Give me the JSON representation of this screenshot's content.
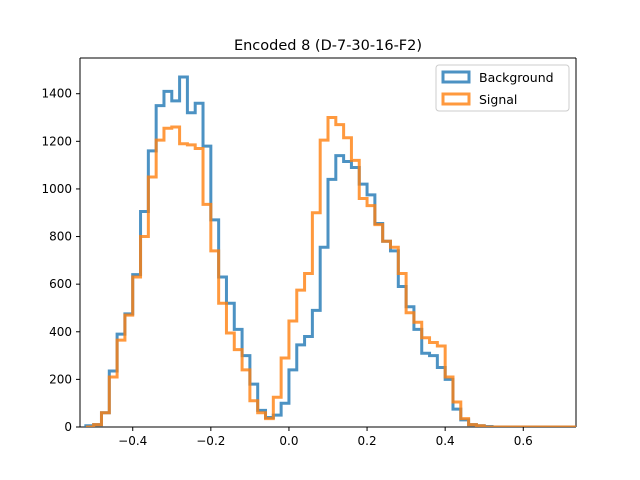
{
  "chart_data": {
    "type": "histogram-step",
    "title": "Encoded 8 (D-7-30-16-F2)",
    "xlabel": "",
    "ylabel": "",
    "xlim": [
      -0.535,
      0.735
    ],
    "ylim": [
      0,
      1550
    ],
    "xticks": [
      -0.4,
      -0.2,
      0.0,
      0.2,
      0.4,
      0.6
    ],
    "xtick_labels": [
      "−0.4",
      "−0.2",
      "0.0",
      "0.2",
      "0.4",
      "0.6"
    ],
    "yticks": [
      0,
      200,
      400,
      600,
      800,
      1000,
      1200,
      1400
    ],
    "ytick_labels": [
      "0",
      "200",
      "400",
      "600",
      "800",
      "1000",
      "1200",
      "1400"
    ],
    "legend_position": "upper right",
    "bin_edges": [
      -0.52,
      -0.5,
      -0.48,
      -0.46,
      -0.44,
      -0.42,
      -0.4,
      -0.38,
      -0.36,
      -0.34,
      -0.32,
      -0.3,
      -0.28,
      -0.26,
      -0.24,
      -0.22,
      -0.2,
      -0.18,
      -0.16,
      -0.14,
      -0.12,
      -0.1,
      -0.08,
      -0.06,
      -0.04,
      -0.02,
      0.0,
      0.02,
      0.04,
      0.06,
      0.08,
      0.1,
      0.12,
      0.14,
      0.16,
      0.18,
      0.2,
      0.22,
      0.24,
      0.26,
      0.28,
      0.3,
      0.32,
      0.34,
      0.36,
      0.38,
      0.4,
      0.42,
      0.44,
      0.46,
      0.48,
      0.5,
      0.52,
      0.54,
      0.56,
      0.58,
      0.6,
      0.62,
      0.64,
      0.66,
      0.68,
      0.7,
      0.72,
      0.74
    ],
    "series": [
      {
        "name": "Background",
        "color": "#1f77b4",
        "values": [
          5,
          10,
          60,
          235,
          390,
          475,
          640,
          905,
          1160,
          1350,
          1410,
          1370,
          1470,
          1320,
          1360,
          1180,
          870,
          630,
          520,
          410,
          300,
          180,
          70,
          40,
          50,
          100,
          240,
          345,
          380,
          490,
          755,
          1040,
          1140,
          1115,
          1090,
          1020,
          975,
          855,
          780,
          740,
          590,
          505,
          410,
          310,
          300,
          250,
          200,
          75,
          30,
          10,
          5,
          2,
          0,
          0,
          0,
          0,
          0,
          0,
          0,
          0,
          0,
          0,
          0
        ]
      },
      {
        "name": "Signal",
        "color": "#ff7f0e",
        "values": [
          0,
          10,
          60,
          210,
          365,
          470,
          630,
          800,
          1050,
          1205,
          1255,
          1260,
          1190,
          1185,
          1170,
          935,
          740,
          520,
          395,
          325,
          240,
          110,
          60,
          35,
          125,
          290,
          445,
          575,
          645,
          900,
          1205,
          1300,
          1270,
          1215,
          1120,
          960,
          930,
          850,
          780,
          755,
          645,
          480,
          440,
          375,
          355,
          340,
          210,
          105,
          35,
          10,
          5,
          0,
          0,
          0,
          0,
          0,
          0,
          0,
          0,
          0,
          0,
          0,
          0
        ]
      }
    ]
  }
}
